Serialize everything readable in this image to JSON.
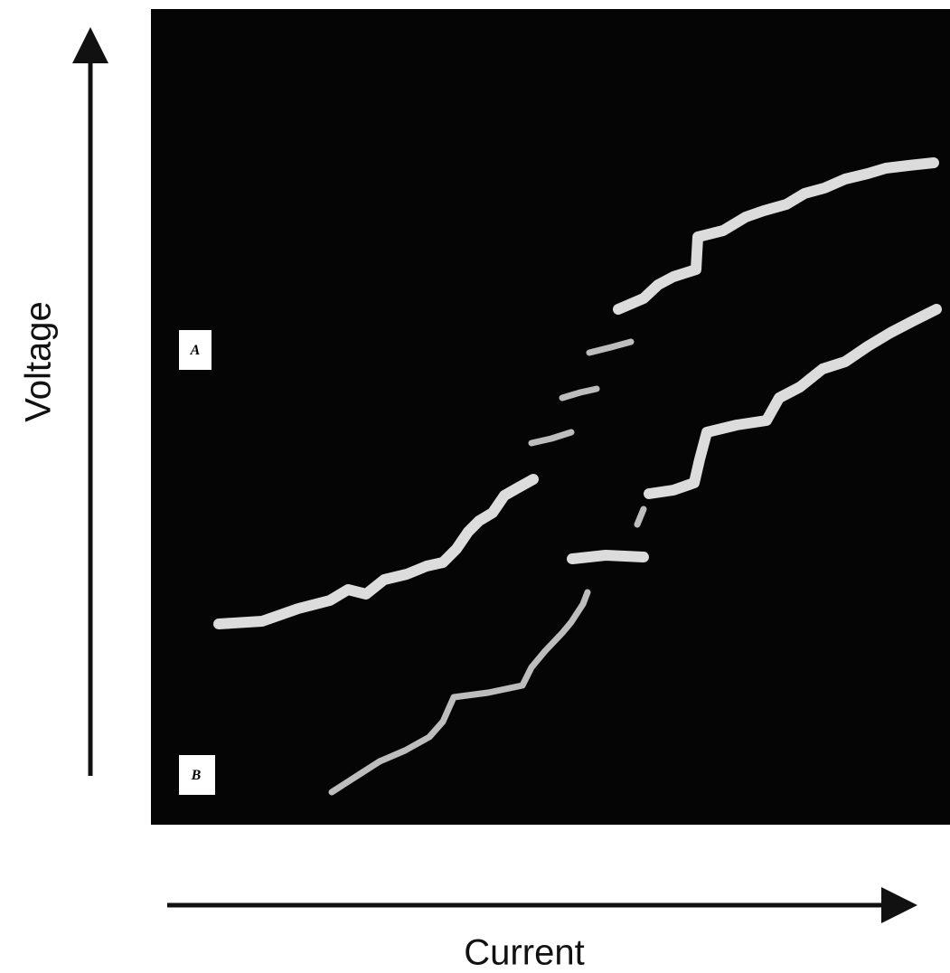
{
  "figure": {
    "y_axis_label": "Voltage",
    "x_axis_label": "Current",
    "labels": [
      "A",
      "B"
    ]
  }
}
